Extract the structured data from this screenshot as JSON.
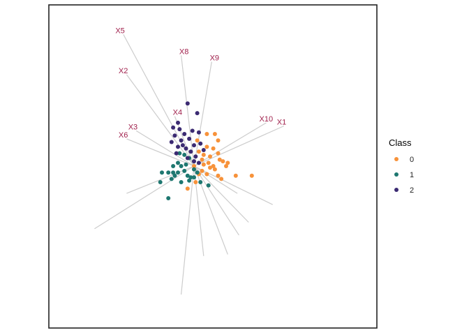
{
  "chart_data": {
    "type": "scatter",
    "description_kind": "biplot",
    "xlim": [
      -1,
      1
    ],
    "ylim": [
      -1,
      1
    ],
    "grid": false,
    "legend_position": "right",
    "legend": {
      "title": "Class",
      "items": [
        {
          "label": "0",
          "color": "#F7923A"
        },
        {
          "label": "1",
          "color": "#1E7770"
        },
        {
          "label": "2",
          "color": "#3B2A72"
        }
      ]
    },
    "loadings": [
      {
        "name": "X5",
        "x": -0.44,
        "y": 0.82,
        "label_color": "#A0204C"
      },
      {
        "name": "X2",
        "x": -0.42,
        "y": 0.57,
        "label_color": "#A0204C"
      },
      {
        "name": "X8",
        "x": -0.08,
        "y": 0.69,
        "label_color": "#A0204C"
      },
      {
        "name": "X9",
        "x": 0.11,
        "y": 0.65,
        "label_color": "#A0204C"
      },
      {
        "name": "X4",
        "x": -0.12,
        "y": 0.31,
        "label_color": "#A0204C"
      },
      {
        "name": "X3",
        "x": -0.36,
        "y": 0.22,
        "label_color": "#A0204C"
      },
      {
        "name": "X6",
        "x": -0.42,
        "y": 0.17,
        "label_color": "#A0204C"
      },
      {
        "name": "X10",
        "x": 0.45,
        "y": 0.27,
        "label_color": "#A0204C"
      },
      {
        "name": "X1",
        "x": 0.56,
        "y": 0.25,
        "label_color": "#A0204C"
      }
    ],
    "projection_axes": [
      {
        "x": -0.42,
        "y": -0.17
      },
      {
        "x": -0.62,
        "y": -0.39
      },
      {
        "x": 0.49,
        "y": -0.24
      },
      {
        "x": 0.27,
        "y": -0.17
      },
      {
        "x": 0.34,
        "y": -0.35
      },
      {
        "x": 0.28,
        "y": -0.43
      },
      {
        "x": 0.06,
        "y": -0.56
      },
      {
        "x": -0.08,
        "y": -0.8
      },
      {
        "x": 0.21,
        "y": -0.55
      }
    ],
    "series": [
      {
        "name": "0",
        "color": "#F7923A",
        "points": [
          [
            0.08,
            0.2
          ],
          [
            0.13,
            0.2
          ],
          [
            0.15,
            0.16
          ],
          [
            0.02,
            0.16
          ],
          [
            0.08,
            0.12
          ],
          [
            0.12,
            0.11
          ],
          [
            0.03,
            0.09
          ],
          [
            0.06,
            0.07
          ],
          [
            0.1,
            0.06
          ],
          [
            0.15,
            0.08
          ],
          [
            0.05,
            0.04
          ],
          [
            0.09,
            0.02
          ],
          [
            0.12,
            0.0
          ],
          [
            0.16,
            0.04
          ],
          [
            0.18,
            0.03
          ],
          [
            0.2,
            0.0
          ],
          [
            0.21,
            0.02
          ],
          [
            0.13,
            -0.02
          ],
          [
            0.1,
            -0.01
          ],
          [
            0.15,
            -0.06
          ],
          [
            0.08,
            -0.05
          ],
          [
            0.05,
            -0.03
          ],
          [
            0.17,
            -0.08
          ],
          [
            0.26,
            -0.06
          ],
          [
            0.36,
            -0.06
          ],
          [
            0.01,
            -0.1
          ],
          [
            0.03,
            -0.05
          ],
          [
            -0.04,
            -0.14
          ],
          [
            0.0,
            0.0
          ],
          [
            0.06,
            0.01
          ]
        ]
      },
      {
        "name": "1",
        "color": "#1E7770",
        "points": [
          [
            -0.09,
            0.08
          ],
          [
            -0.06,
            0.07
          ],
          [
            -0.03,
            0.05
          ],
          [
            -0.13,
            0.0
          ],
          [
            -0.1,
            0.02
          ],
          [
            -0.08,
            0.0
          ],
          [
            -0.16,
            -0.04
          ],
          [
            -0.13,
            -0.04
          ],
          [
            -0.12,
            -0.06
          ],
          [
            -0.14,
            -0.08
          ],
          [
            -0.1,
            -0.04
          ],
          [
            -0.06,
            -0.03
          ],
          [
            -0.04,
            -0.06
          ],
          [
            -0.02,
            -0.07
          ],
          [
            0.0,
            -0.02
          ],
          [
            0.02,
            -0.04
          ],
          [
            0.04,
            -0.1
          ],
          [
            0.09,
            -0.12
          ],
          [
            -0.08,
            -0.1
          ],
          [
            -0.03,
            -0.09
          ],
          [
            -0.2,
            -0.04
          ],
          [
            -0.21,
            -0.1
          ],
          [
            -0.16,
            -0.2
          ],
          [
            0.0,
            -0.07
          ],
          [
            -0.05,
            0.01
          ]
        ]
      },
      {
        "name": "2",
        "color": "#3B2A72",
        "points": [
          [
            -0.04,
            0.39
          ],
          [
            0.02,
            0.33
          ],
          [
            -0.1,
            0.27
          ],
          [
            -0.13,
            0.24
          ],
          [
            -0.09,
            0.23
          ],
          [
            -0.06,
            0.2
          ],
          [
            -0.01,
            0.22
          ],
          [
            0.03,
            0.21
          ],
          [
            -0.12,
            0.19
          ],
          [
            -0.08,
            0.16
          ],
          [
            -0.03,
            0.17
          ],
          [
            0.0,
            0.13
          ],
          [
            0.04,
            0.14
          ],
          [
            -0.1,
            0.12
          ],
          [
            -0.05,
            0.11
          ],
          [
            -0.02,
            0.09
          ],
          [
            0.01,
            0.06
          ],
          [
            0.03,
            0.02
          ],
          [
            -0.14,
            0.15
          ],
          [
            -0.11,
            0.08
          ],
          [
            0.06,
            0.1
          ],
          [
            -0.07,
            0.13
          ],
          [
            0.0,
            0.03
          ],
          [
            -0.04,
            0.05
          ]
        ]
      }
    ]
  }
}
